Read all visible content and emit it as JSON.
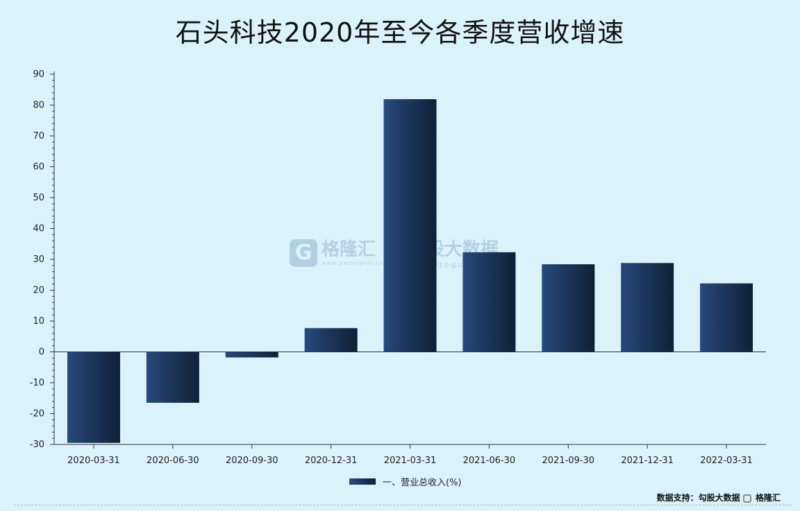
{
  "title": "石头科技2020年至今各季度营收增速",
  "legend_label": "一、营业总收入(%)",
  "source": {
    "label": "数据支持：勾股大数据",
    "brand": "格隆汇"
  },
  "watermarks": {
    "left_name": "格隆汇",
    "left_url": "www.gelonghui.com",
    "right_name": "勾股大数据",
    "right_url": "www.gogudata.com"
  },
  "colors": {
    "background": "#dcf2fb",
    "bar_light": "#274a7c",
    "bar_dark": "#101f36",
    "axis": "#333333"
  },
  "chart_data": {
    "type": "bar",
    "title": "石头科技2020年至今各季度营收增速",
    "xlabel": "",
    "ylabel": "",
    "categories": [
      "2020-03-31",
      "2020-06-30",
      "2020-09-30",
      "2020-12-31",
      "2021-03-31",
      "2021-06-30",
      "2021-09-30",
      "2021-12-31",
      "2022-03-31"
    ],
    "series": [
      {
        "name": "一、营业总收入(%)",
        "values": [
          -29.5,
          -16.5,
          -1.8,
          7.7,
          81.9,
          32.3,
          28.4,
          28.8,
          22.2
        ]
      }
    ],
    "ylim": [
      -30,
      90
    ],
    "yticks": [
      -30,
      -20,
      -10,
      0,
      10,
      20,
      30,
      40,
      50,
      60,
      70,
      80,
      90
    ],
    "grid": false,
    "legend_position": "bottom-center"
  }
}
